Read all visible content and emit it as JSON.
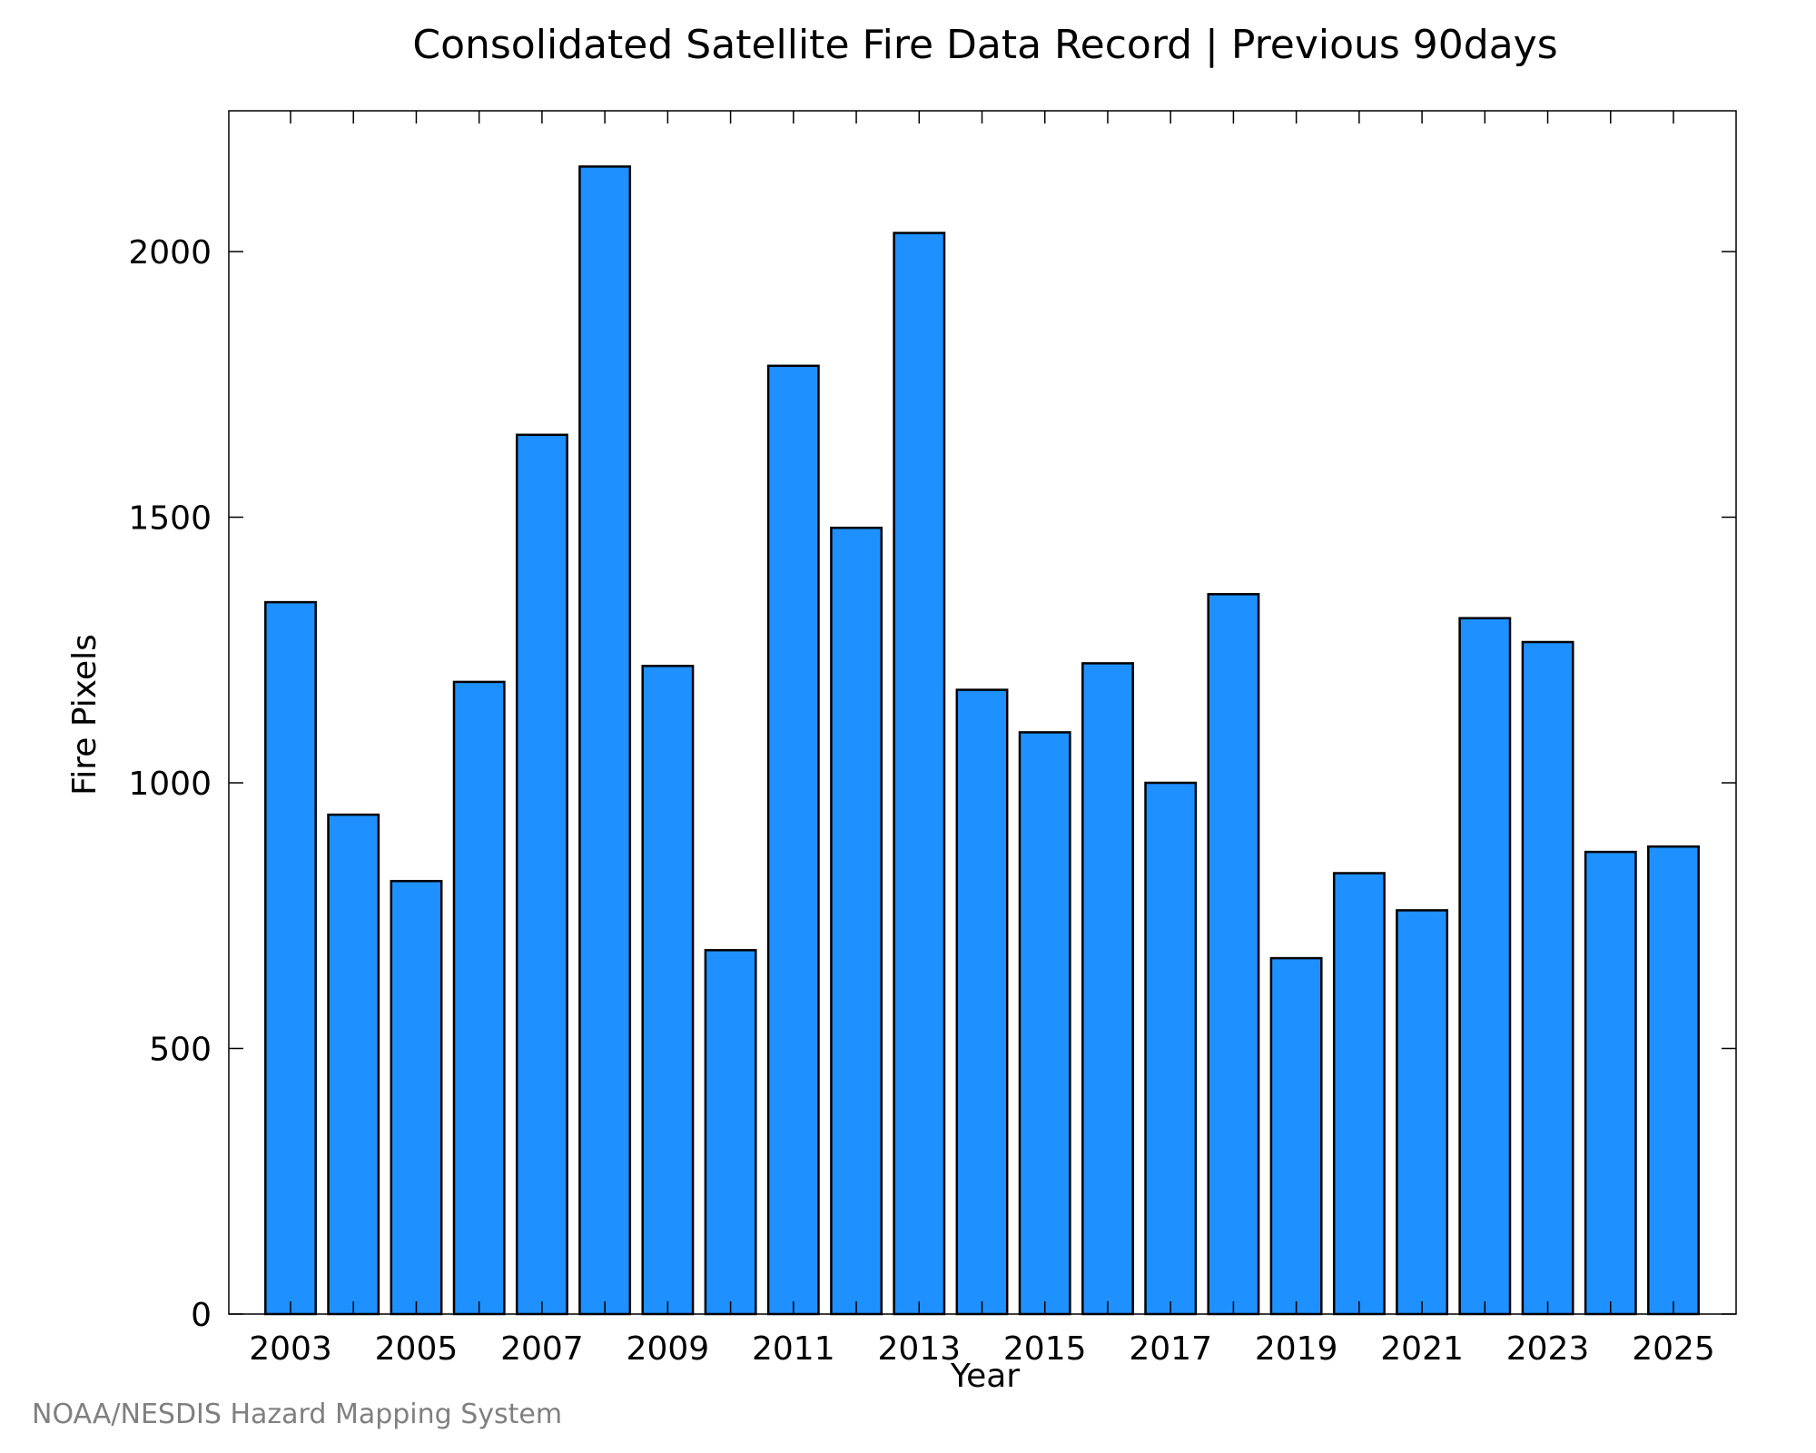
{
  "chart_data": {
    "type": "bar",
    "title": "Consolidated Satellite Fire Data Record | Previous 90days",
    "xlabel": "Year",
    "ylabel": "Fire Pixels",
    "categories": [
      "2003",
      "2004",
      "2005",
      "2006",
      "2007",
      "2008",
      "2009",
      "2010",
      "2011",
      "2012",
      "2013",
      "2014",
      "2015",
      "2016",
      "2017",
      "2018",
      "2019",
      "2020",
      "2021",
      "2022",
      "2023",
      "2024",
      "2025"
    ],
    "values": [
      1340,
      940,
      815,
      1190,
      1655,
      2160,
      1220,
      685,
      1785,
      1480,
      2035,
      1175,
      1095,
      1225,
      1000,
      1355,
      670,
      830,
      760,
      1310,
      1265,
      870,
      880
    ],
    "x_tick_labels": [
      "2003",
      "2005",
      "2007",
      "2009",
      "2011",
      "2013",
      "2015",
      "2017",
      "2019",
      "2021",
      "2023",
      "2025"
    ],
    "y_ticks": [
      0,
      500,
      1000,
      1500,
      2000
    ],
    "ylim": [
      0,
      2265
    ],
    "grid": false,
    "bar_color": "#1E90FF",
    "edge_color": "#000000"
  },
  "credit": "NOAA/NESDIS Hazard Mapping System"
}
